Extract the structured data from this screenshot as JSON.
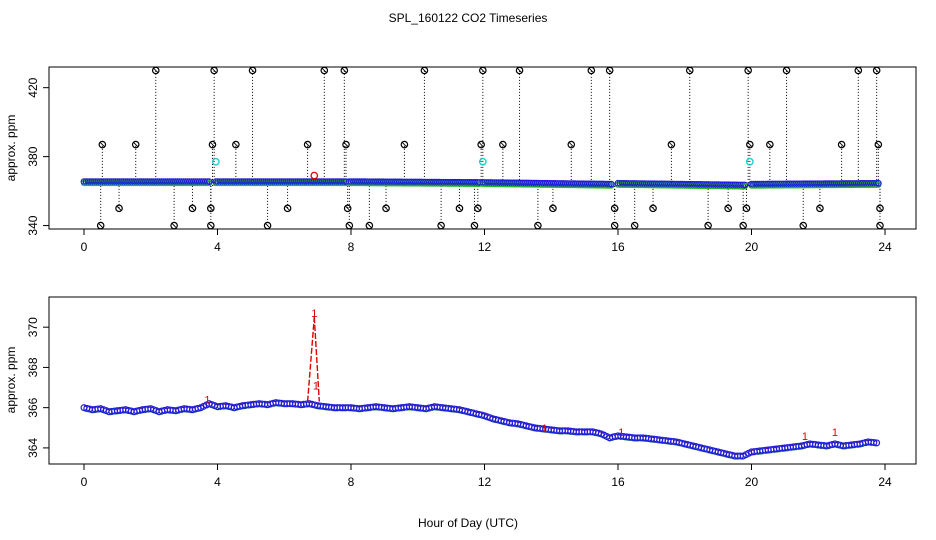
{
  "figure": {
    "title": "SPL_160122  CO2 Timeseries",
    "xlabel": "Hour of Day (UTC)"
  },
  "chart_data": [
    {
      "type": "scatter",
      "panel": "top",
      "ylabel": "approx. ppm",
      "xlim": [
        0,
        24
      ],
      "ylim": [
        338,
        432
      ],
      "xticks": [
        0,
        4,
        8,
        12,
        16,
        20,
        24
      ],
      "yticks": [
        340,
        380,
        420
      ],
      "grid": false,
      "colors": {
        "main": "#1f1fd6",
        "fill": "#22bb22",
        "outlier": "#000000",
        "flag": "#22cccc",
        "spike": "#dd0000",
        "drop": "#000000"
      },
      "main_segments": [
        {
          "x0": 0.0,
          "x1": 3.75,
          "y0": 365.5,
          "y1": 365.5
        },
        {
          "x0": 3.95,
          "x1": 7.85,
          "y0": 365.5,
          "y1": 365.5
        },
        {
          "x0": 7.95,
          "x1": 11.85,
          "y0": 365.5,
          "y1": 365.0
        },
        {
          "x0": 11.95,
          "x1": 15.8,
          "y0": 365.0,
          "y1": 364.0
        },
        {
          "x0": 16.0,
          "x1": 19.8,
          "y0": 364.5,
          "y1": 363.5
        },
        {
          "x0": 20.0,
          "x1": 23.8,
          "y0": 364.0,
          "y1": 364.5
        }
      ],
      "high_outliers": [
        [
          0.55,
          387
        ],
        [
          1.55,
          387
        ],
        [
          2.15,
          430
        ],
        [
          3.85,
          387
        ],
        [
          3.9,
          430
        ],
        [
          4.55,
          387
        ],
        [
          5.05,
          430
        ],
        [
          6.7,
          387
        ],
        [
          7.2,
          430
        ],
        [
          7.8,
          430
        ],
        [
          7.85,
          387
        ],
        [
          9.6,
          387
        ],
        [
          10.2,
          430
        ],
        [
          11.9,
          387
        ],
        [
          11.95,
          430
        ],
        [
          12.55,
          387
        ],
        [
          13.05,
          430
        ],
        [
          14.6,
          387
        ],
        [
          15.2,
          430
        ],
        [
          15.75,
          430
        ],
        [
          17.6,
          387
        ],
        [
          18.15,
          430
        ],
        [
          19.95,
          387
        ],
        [
          19.9,
          430
        ],
        [
          20.55,
          387
        ],
        [
          21.05,
          430
        ],
        [
          22.7,
          387
        ],
        [
          23.2,
          430
        ],
        [
          23.75,
          430
        ],
        [
          23.8,
          387
        ]
      ],
      "mid_low_outliers": [
        [
          1.05,
          350
        ],
        [
          3.25,
          350
        ],
        [
          3.8,
          350
        ],
        [
          6.1,
          350
        ],
        [
          7.9,
          350
        ],
        [
          9.05,
          350
        ],
        [
          11.25,
          350
        ],
        [
          11.8,
          350
        ],
        [
          14.05,
          350
        ],
        [
          15.9,
          350
        ],
        [
          17.05,
          350
        ],
        [
          19.3,
          350
        ],
        [
          19.85,
          350
        ],
        [
          22.05,
          350
        ],
        [
          23.85,
          350
        ]
      ],
      "low_outliers": [
        [
          0.5,
          340
        ],
        [
          2.7,
          340
        ],
        [
          3.8,
          340
        ],
        [
          5.5,
          340
        ],
        [
          7.95,
          340
        ],
        [
          8.55,
          340
        ],
        [
          10.7,
          340
        ],
        [
          11.7,
          340
        ],
        [
          13.6,
          340
        ],
        [
          15.9,
          340
        ],
        [
          16.5,
          340
        ],
        [
          18.7,
          340
        ],
        [
          19.75,
          340
        ],
        [
          21.55,
          340
        ],
        [
          23.85,
          340
        ]
      ],
      "flagged": [
        [
          3.95,
          377
        ],
        [
          11.95,
          377
        ],
        [
          19.95,
          377
        ]
      ],
      "spike_points": [
        [
          6.9,
          369
        ]
      ]
    },
    {
      "type": "scatter",
      "panel": "bottom",
      "ylabel": "approx. ppm",
      "xlim": [
        0,
        24
      ],
      "ylim": [
        363.2,
        371.5
      ],
      "xticks": [
        0,
        4,
        8,
        12,
        16,
        20,
        24
      ],
      "yticks": [
        364,
        366,
        368,
        370
      ],
      "grid": false,
      "colors": {
        "main": "#1f1fd6",
        "fill": "#22bb22",
        "spike": "#dd0000"
      },
      "series_points": [
        [
          0.0,
          366.0
        ],
        [
          0.25,
          365.9
        ],
        [
          0.5,
          365.95
        ],
        [
          0.75,
          365.8
        ],
        [
          1.0,
          365.85
        ],
        [
          1.25,
          365.9
        ],
        [
          1.5,
          365.8
        ],
        [
          1.75,
          365.9
        ],
        [
          2.0,
          365.95
        ],
        [
          2.25,
          365.8
        ],
        [
          2.5,
          365.9
        ],
        [
          2.75,
          365.85
        ],
        [
          3.0,
          365.95
        ],
        [
          3.25,
          365.9
        ],
        [
          3.5,
          366.0
        ],
        [
          3.75,
          366.2
        ],
        [
          4.0,
          366.05
        ],
        [
          4.25,
          366.1
        ],
        [
          4.5,
          366.0
        ],
        [
          4.75,
          366.1
        ],
        [
          5.0,
          366.15
        ],
        [
          5.25,
          366.2
        ],
        [
          5.5,
          366.15
        ],
        [
          5.75,
          366.25
        ],
        [
          6.0,
          366.2
        ],
        [
          6.25,
          366.2
        ],
        [
          6.5,
          366.15
        ],
        [
          6.75,
          366.2
        ],
        [
          7.0,
          366.1
        ],
        [
          7.25,
          366.05
        ],
        [
          7.5,
          366.0
        ],
        [
          7.75,
          366.0
        ],
        [
          8.0,
          366.0
        ],
        [
          8.25,
          365.95
        ],
        [
          8.5,
          366.0
        ],
        [
          8.75,
          366.05
        ],
        [
          9.0,
          366.0
        ],
        [
          9.25,
          365.95
        ],
        [
          9.5,
          366.0
        ],
        [
          9.75,
          366.05
        ],
        [
          10.0,
          366.0
        ],
        [
          10.25,
          365.95
        ],
        [
          10.5,
          366.05
        ],
        [
          10.75,
          366.0
        ],
        [
          11.0,
          365.95
        ],
        [
          11.25,
          365.9
        ],
        [
          11.5,
          365.8
        ],
        [
          11.75,
          365.7
        ],
        [
          12.0,
          365.6
        ],
        [
          12.25,
          365.45
        ],
        [
          12.5,
          365.35
        ],
        [
          12.75,
          365.25
        ],
        [
          13.0,
          365.2
        ],
        [
          13.25,
          365.1
        ],
        [
          13.5,
          365.0
        ],
        [
          13.75,
          364.95
        ],
        [
          14.0,
          364.9
        ],
        [
          14.25,
          364.85
        ],
        [
          14.5,
          364.85
        ],
        [
          14.75,
          364.8
        ],
        [
          15.0,
          364.8
        ],
        [
          15.25,
          364.8
        ],
        [
          15.5,
          364.7
        ],
        [
          15.75,
          364.5
        ],
        [
          16.0,
          364.6
        ],
        [
          16.25,
          364.55
        ],
        [
          16.5,
          364.5
        ],
        [
          16.75,
          364.5
        ],
        [
          17.0,
          364.45
        ],
        [
          17.25,
          364.4
        ],
        [
          17.5,
          364.35
        ],
        [
          17.75,
          364.3
        ],
        [
          18.0,
          364.2
        ],
        [
          18.25,
          364.1
        ],
        [
          18.5,
          364.0
        ],
        [
          18.75,
          363.9
        ],
        [
          19.0,
          363.8
        ],
        [
          19.25,
          363.7
        ],
        [
          19.5,
          363.6
        ],
        [
          19.75,
          363.6
        ],
        [
          20.0,
          363.8
        ],
        [
          20.25,
          363.85
        ],
        [
          20.5,
          363.9
        ],
        [
          20.75,
          363.95
        ],
        [
          21.0,
          364.0
        ],
        [
          21.25,
          364.05
        ],
        [
          21.5,
          364.1
        ],
        [
          21.75,
          364.2
        ],
        [
          22.0,
          364.15
        ],
        [
          22.25,
          364.1
        ],
        [
          22.5,
          364.2
        ],
        [
          22.75,
          364.1
        ],
        [
          23.0,
          364.15
        ],
        [
          23.25,
          364.2
        ],
        [
          23.5,
          364.3
        ],
        [
          23.75,
          364.25
        ]
      ],
      "spike_line": [
        [
          6.7,
          366.3
        ],
        [
          6.9,
          370.5
        ],
        [
          7.05,
          366.3
        ]
      ],
      "spike_markers": [
        [
          6.9,
          370.7
        ],
        [
          6.95,
          367.1
        ],
        [
          3.7,
          366.4
        ],
        [
          21.6,
          364.6
        ],
        [
          22.5,
          364.8
        ],
        [
          16.1,
          364.8
        ],
        [
          13.8,
          365.0
        ]
      ]
    }
  ]
}
